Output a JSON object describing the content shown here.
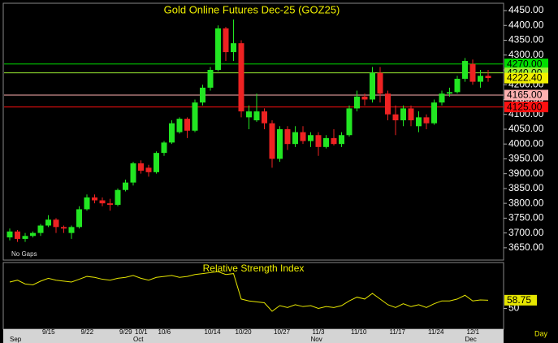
{
  "chart_data": [
    {
      "type": "candlestick",
      "title": "Gold Online Futures Dec-25 (GOZ25)",
      "annotation": "No Gaps",
      "categories": [
        null,
        null,
        null,
        null,
        "9/15",
        null,
        null,
        null,
        null,
        "9/22",
        null,
        null,
        null,
        null,
        "9/29",
        null,
        "10/1",
        null,
        null,
        "10/6",
        null,
        null,
        null,
        null,
        null,
        "10/14",
        null,
        null,
        null,
        "10/20",
        null,
        null,
        null,
        null,
        "10/27",
        null,
        null,
        null,
        null,
        "11/3",
        null,
        null,
        null,
        null,
        "11/10",
        null,
        null,
        null,
        null,
        "11/17",
        null,
        null,
        null,
        null,
        "11/24",
        null,
        null,
        null,
        null,
        "12/1",
        null,
        null,
        null
      ],
      "months": [
        "Sep",
        null,
        null,
        null,
        null,
        null,
        null,
        null,
        null,
        null,
        null,
        null,
        null,
        null,
        null,
        null,
        "Oct",
        null,
        null,
        null,
        null,
        null,
        null,
        null,
        null,
        null,
        null,
        null,
        null,
        null,
        null,
        null,
        null,
        null,
        null,
        null,
        null,
        null,
        null,
        "Nov",
        null,
        null,
        null,
        null,
        null,
        null,
        null,
        null,
        null,
        null,
        null,
        null,
        null,
        null,
        null,
        null,
        null,
        null,
        null,
        "Dec",
        null,
        null,
        null
      ],
      "open": [
        3685,
        3705,
        3680,
        3690,
        3700,
        3725,
        3745,
        3720,
        3700,
        3720,
        3780,
        3820,
        3810,
        3800,
        3795,
        3845,
        3870,
        3935,
        3920,
        3905,
        3970,
        4005,
        4040,
        4085,
        4045,
        4140,
        4190,
        4250,
        4390,
        4310,
        4340,
        4090,
        4080,
        4110,
        4070,
        3950,
        4050,
        4000,
        4040,
        4010,
        4030,
        3990,
        4020,
        4000,
        4030,
        4120,
        4160,
        4150,
        4240,
        4170,
        4100,
        4080,
        4120,
        4060,
        4090,
        4070,
        4140,
        4170,
        4175,
        4220,
        4270,
        4210,
        4230
      ],
      "high": [
        3715,
        3710,
        3700,
        3705,
        3730,
        3760,
        3750,
        3725,
        3725,
        3790,
        3830,
        3830,
        3820,
        3815,
        3850,
        3880,
        3940,
        3945,
        3930,
        3975,
        4010,
        4080,
        4090,
        4090,
        4150,
        4200,
        4260,
        4400,
        4395,
        4420,
        4350,
        4130,
        4170,
        4120,
        4080,
        4060,
        4060,
        4060,
        4060,
        4040,
        4040,
        4030,
        4050,
        4040,
        4130,
        4180,
        4170,
        4260,
        4260,
        4180,
        4130,
        4130,
        4130,
        4110,
        4100,
        4150,
        4180,
        4190,
        4230,
        4290,
        4285,
        4250,
        4250
      ],
      "low": [
        3675,
        3670,
        3670,
        3685,
        3690,
        3720,
        3700,
        3700,
        3680,
        3715,
        3775,
        3800,
        3790,
        3775,
        3790,
        3840,
        3860,
        3900,
        3890,
        3900,
        3960,
        4000,
        4035,
        4020,
        4040,
        4130,
        4180,
        4245,
        4280,
        4280,
        4090,
        4050,
        4075,
        4050,
        3920,
        3940,
        3980,
        3990,
        4000,
        3990,
        3960,
        3985,
        3995,
        3990,
        4025,
        4110,
        4130,
        4140,
        4140,
        4080,
        4030,
        4060,
        4060,
        4040,
        4050,
        4065,
        4130,
        4160,
        4170,
        4210,
        4200,
        4190,
        4210
      ],
      "close": [
        3705,
        3680,
        3690,
        3700,
        3725,
        3745,
        3720,
        3715,
        3720,
        3780,
        3820,
        3810,
        3800,
        3795,
        3845,
        3870,
        3935,
        3910,
        3905,
        3970,
        4005,
        4070,
        4085,
        4045,
        4140,
        4190,
        4250,
        4390,
        4310,
        4340,
        4110,
        4110,
        4110,
        4070,
        3950,
        4050,
        4000,
        4040,
        4010,
        4030,
        3990,
        4020,
        4000,
        4030,
        4120,
        4160,
        4150,
        4240,
        4170,
        4100,
        4080,
        4120,
        4080,
        4090,
        4070,
        4140,
        4170,
        4175,
        4220,
        4280,
        4210,
        4230,
        4222.4
      ],
      "up_color": "#22e622",
      "down_color": "#ee2222",
      "ylim": [
        3614,
        4472
      ],
      "yticks": [
        {
          "value": 4450,
          "label": "4450.00"
        },
        {
          "value": 4400,
          "label": "4400.00"
        },
        {
          "value": 4350,
          "label": "4350.00"
        },
        {
          "value": 4300,
          "label": "4300.00"
        },
        {
          "value": 4250,
          "label": "4250.00"
        },
        {
          "value": 4200,
          "label": "4200.00"
        },
        {
          "value": 4150,
          "label": "4150.00"
        },
        {
          "value": 4100,
          "label": "4100.00"
        },
        {
          "value": 4050,
          "label": "4050.00"
        },
        {
          "value": 4000,
          "label": "4000.00"
        },
        {
          "value": 3950,
          "label": "3950.00"
        },
        {
          "value": 3900,
          "label": "3900.00"
        },
        {
          "value": 3850,
          "label": "3850.00"
        },
        {
          "value": 3800,
          "label": "3800.00"
        },
        {
          "value": 3750,
          "label": "3750.00"
        },
        {
          "value": 3700,
          "label": "3700.00"
        },
        {
          "value": 3650,
          "label": "3650.00"
        }
      ],
      "levels": [
        {
          "value": 4270,
          "label": "4270.00",
          "color": "#00dd00",
          "line": true
        },
        {
          "value": 4240,
          "label": "4240.00",
          "color": "#99ee33",
          "line": true
        },
        {
          "value": 4222.4,
          "label": "4222.40",
          "color": "#f0f000",
          "line": false
        },
        {
          "value": 4165,
          "label": "4165.00",
          "color": "#ffb0b0",
          "line": true
        },
        {
          "value": 4125,
          "label": "4125.00",
          "color": "#ff1010",
          "line": true
        }
      ]
    },
    {
      "type": "line",
      "title": "Relative Strength Index",
      "x_label": "Day",
      "color": "#e6e600",
      "values": [
        78,
        80,
        76,
        75,
        79,
        82,
        80,
        79,
        78,
        81,
        84,
        83,
        81,
        80,
        82,
        83,
        85,
        82,
        80,
        83,
        84,
        85,
        83,
        84,
        86,
        87,
        88,
        89,
        86,
        87,
        60,
        58,
        57,
        56,
        47,
        53,
        51,
        54,
        52,
        53,
        50,
        52,
        51,
        53,
        58,
        62,
        60,
        66,
        60,
        54,
        51,
        55,
        52,
        54,
        51,
        55,
        58,
        58,
        60,
        64,
        58,
        59,
        58.75
      ],
      "ylim": [
        28,
        97
      ],
      "yticks": [
        50
      ]
    }
  ]
}
